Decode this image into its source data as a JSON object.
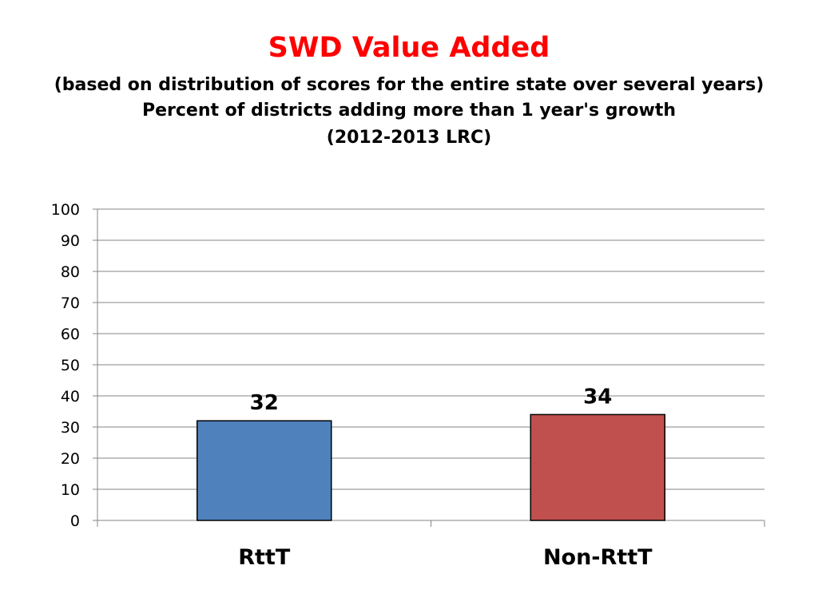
{
  "chart_data": {
    "type": "bar",
    "title": "SWD Value Added",
    "subtitles": [
      "(based on distribution of scores for the entire state over several years)",
      "Percent of districts adding more than 1 year's growth",
      "(2012-2013 LRC)"
    ],
    "categories": [
      "RttT",
      "Non-RttT"
    ],
    "values": [
      32,
      34
    ],
    "colors": [
      "#4f81bd",
      "#c0504d"
    ],
    "ylim": [
      0,
      100
    ],
    "yticks": [
      0,
      10,
      20,
      30,
      40,
      50,
      60,
      70,
      80,
      90,
      100
    ],
    "grid": true,
    "xlabel": "",
    "ylabel": ""
  }
}
